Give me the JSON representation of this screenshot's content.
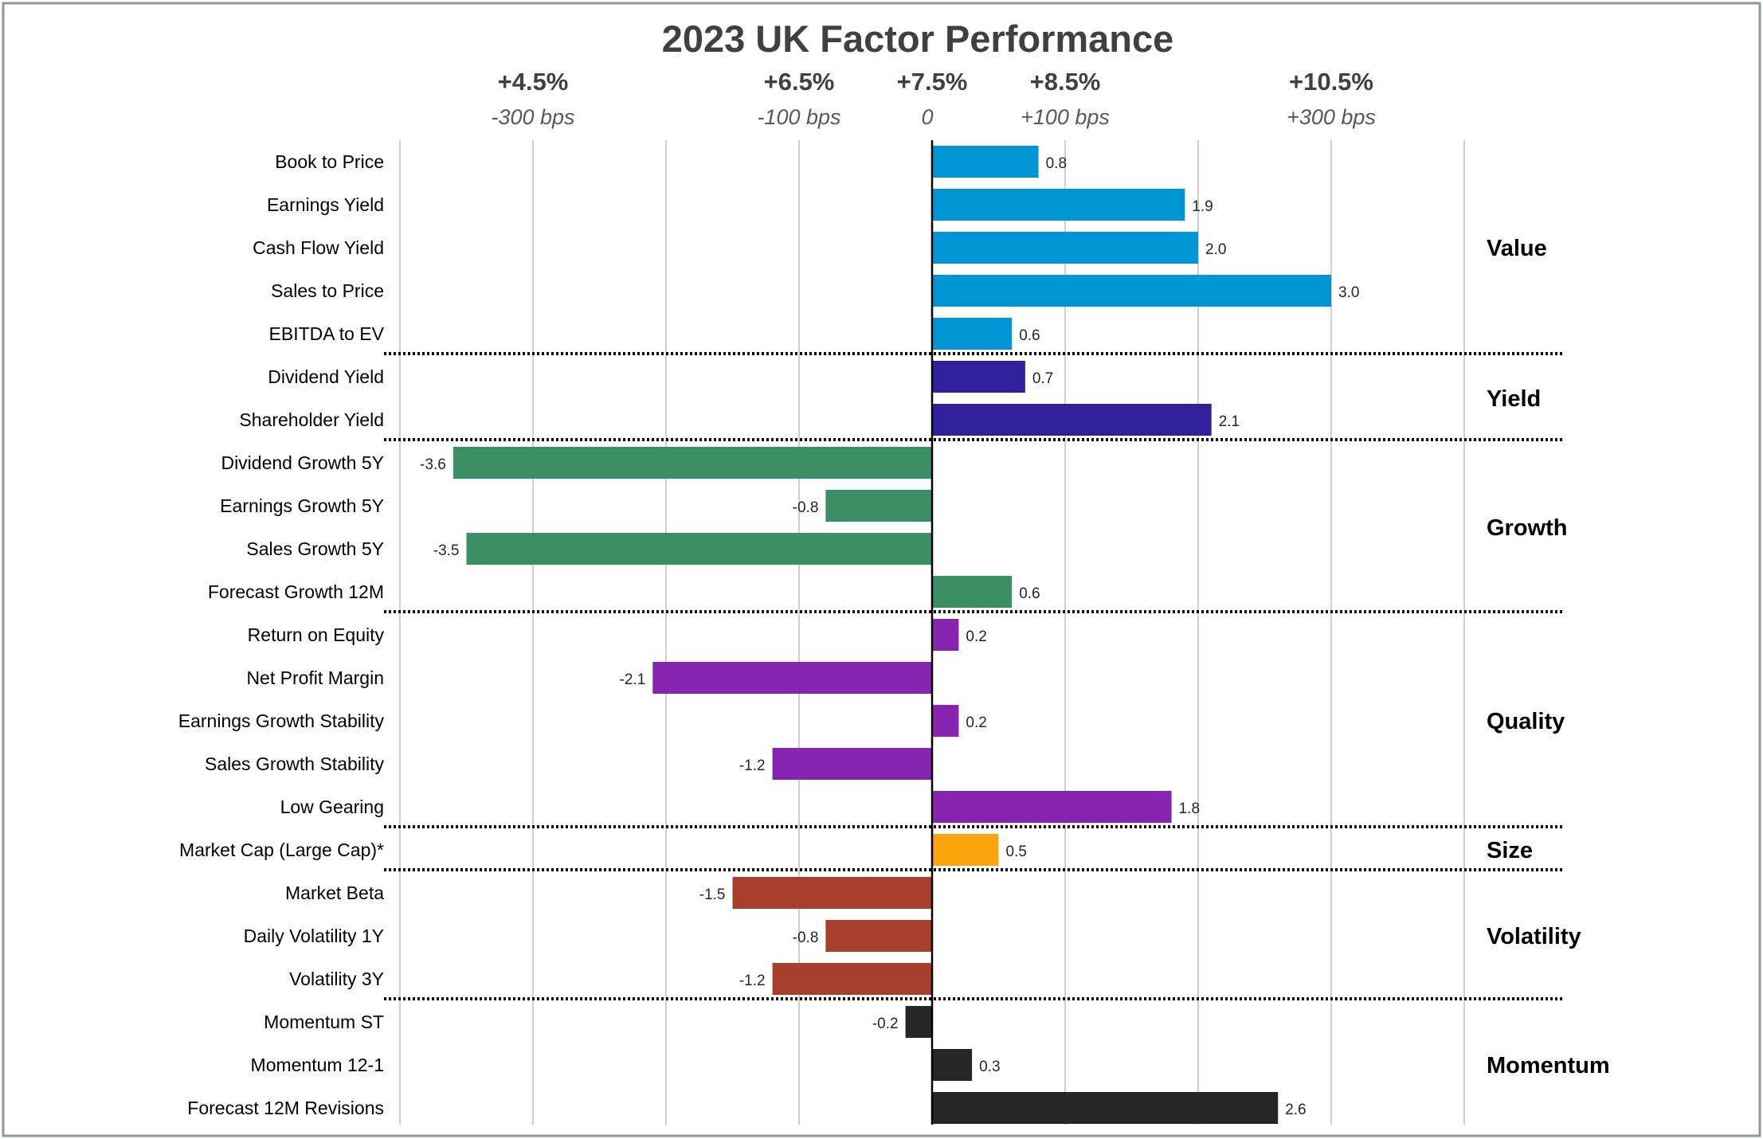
{
  "chart_data": {
    "type": "bar",
    "orientation": "horizontal",
    "title": "2023 UK Factor Performance",
    "xlim": [
      -4.0,
      4.0
    ],
    "grid": true,
    "top_axis": [
      {
        "value": -3,
        "pct": "+4.5%",
        "bps": "-300 bps"
      },
      {
        "value": -1,
        "pct": "+6.5%",
        "bps": "-100 bps"
      },
      {
        "value": 0,
        "pct": "+7.5%",
        "bps": "0"
      },
      {
        "value": 1,
        "pct": "+8.5%",
        "bps": "+100 bps"
      },
      {
        "value": 3,
        "pct": "+10.5%",
        "bps": "+300 bps"
      }
    ],
    "categories": [
      "Book to Price",
      "Earnings Yield",
      "Cash Flow Yield",
      "Sales to Price",
      "EBITDA to EV",
      "Dividend Yield",
      "Shareholder Yield",
      "Dividend Growth 5Y",
      "Earnings Growth 5Y",
      "Sales Growth 5Y",
      "Forecast Growth 12M",
      "Return on Equity",
      "Net Profit Margin",
      "Earnings Growth Stability",
      "Sales Growth Stability",
      "Low Gearing",
      "Market Cap (Large Cap)*",
      "Market Beta",
      "Daily Volatility 1Y",
      "Volatility 3Y",
      "Momentum ST",
      "Momentum 12-1",
      "Forecast 12M Revisions"
    ],
    "values": [
      0.8,
      1.9,
      2.0,
      3.0,
      0.6,
      0.7,
      2.1,
      -3.6,
      -0.8,
      -3.5,
      0.6,
      0.2,
      -2.1,
      0.2,
      -1.2,
      1.8,
      0.5,
      -1.5,
      -0.8,
      -1.2,
      -0.2,
      0.3,
      2.6
    ],
    "value_labels": [
      "0.8",
      "1.9",
      "2.0",
      "3.0",
      "0.6",
      "0.7",
      "2.1",
      "-3.6",
      "-0.8",
      "-3.5",
      "0.6",
      "0.2",
      "-2.1",
      "0.2",
      "-1.2",
      "1.8",
      "0.5",
      "-1.5",
      "-0.8",
      "-1.2",
      "-0.2",
      "0.3",
      "2.6"
    ],
    "groups": [
      {
        "name": "Value",
        "start": 0,
        "end": 4,
        "color": "#0095d4"
      },
      {
        "name": "Yield",
        "start": 5,
        "end": 6,
        "color": "#30209c"
      },
      {
        "name": "Growth",
        "start": 7,
        "end": 10,
        "color": "#3a8f65"
      },
      {
        "name": "Quality",
        "start": 11,
        "end": 15,
        "color": "#8725b0"
      },
      {
        "name": "Size",
        "start": 16,
        "end": 16,
        "color": "#fba40c"
      },
      {
        "name": "Volatility",
        "start": 17,
        "end": 19,
        "color": "#a73f2c"
      },
      {
        "name": "Momentum",
        "start": 20,
        "end": 22,
        "color": "#262626"
      }
    ]
  }
}
